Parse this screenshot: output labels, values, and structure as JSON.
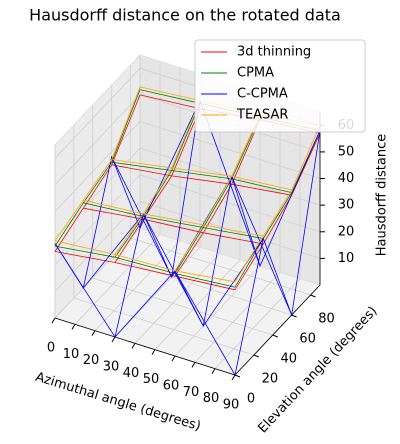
{
  "chart_data": {
    "type": "wireframe3d",
    "title": "Hausdorff distance on the rotated data",
    "xlabel": "Azimuthal angle (degrees)",
    "ylabel": "Elevation angle (degrees)",
    "zlabel": "Hausdorff distance",
    "x": [
      0,
      30,
      60,
      90
    ],
    "y": [
      0,
      30,
      60,
      90
    ],
    "xlim": [
      0,
      90
    ],
    "ylim": [
      0,
      90
    ],
    "zlim": [
      0,
      65
    ],
    "xticks": [
      0,
      10,
      20,
      30,
      40,
      50,
      60,
      70,
      80,
      90
    ],
    "yticks": [
      0,
      20,
      40,
      60,
      80
    ],
    "zticks": [
      10,
      20,
      30,
      40,
      50,
      60
    ],
    "grid": true,
    "legend": "upper right",
    "series": [
      {
        "name": "3d thinning",
        "color": "#ff0000",
        "values": [
          [
            25,
            28,
            30,
            32
          ],
          [
            30,
            33,
            35,
            38
          ],
          [
            35,
            38,
            42,
            45
          ],
          [
            50,
            52,
            55,
            57
          ]
        ]
      },
      {
        "name": "CPMA",
        "color": "#008000",
        "values": [
          [
            27,
            30,
            31,
            33
          ],
          [
            32,
            34,
            37,
            40
          ],
          [
            36,
            40,
            44,
            46
          ],
          [
            52,
            54,
            56,
            58
          ]
        ]
      },
      {
        "name": "C-CPMA",
        "color": "#0000ff",
        "values": [
          [
            28,
            0,
            32,
            0
          ],
          [
            0,
            35,
            0,
            40
          ],
          [
            38,
            0,
            45,
            0
          ],
          [
            0,
            55,
            0,
            58
          ]
        ]
      },
      {
        "name": "TEASAR",
        "color": "#ffa500",
        "values": [
          [
            29,
            31,
            32,
            35
          ],
          [
            33,
            35,
            38,
            41
          ],
          [
            37,
            41,
            45,
            47
          ],
          [
            53,
            55,
            57,
            60
          ]
        ]
      }
    ]
  }
}
